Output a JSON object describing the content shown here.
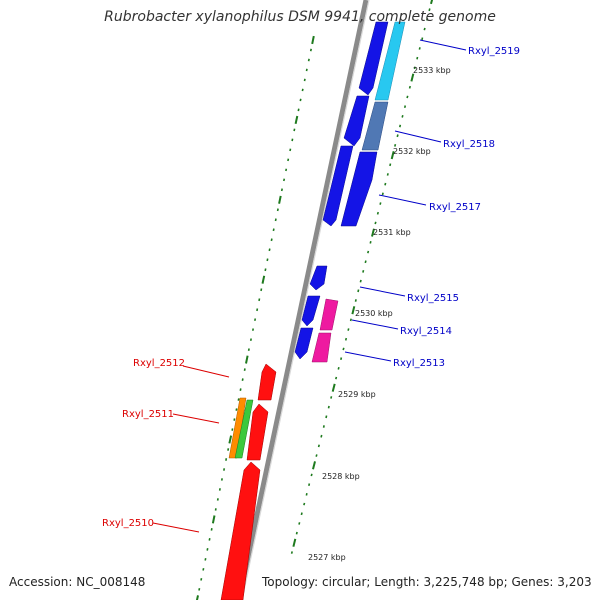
{
  "title": "Rubrobacter xylanophilus DSM 9941, complete genome",
  "footer": {
    "accession": "Accession: NC_008148",
    "topology": "Topology: circular; Length: 3,225,748 bp; Genes: 3,203"
  },
  "colors": {
    "backbone": "#888888",
    "tick": "#1e7a1e",
    "forward_label": "#0000c8",
    "reverse_label": "#dc0000",
    "blue": "#1414e6",
    "cyan": "#28c8f0",
    "steel": "#5078b4",
    "magenta": "#ee1aa0",
    "red": "#ff1010",
    "orange": "#ff8c00",
    "green": "#3cc83c"
  },
  "scale_labels": [
    {
      "kbp": 2533,
      "text": "2533 kbp"
    },
    {
      "kbp": 2532,
      "text": "2532 kbp"
    },
    {
      "kbp": 2531,
      "text": "2531 kbp"
    },
    {
      "kbp": 2530,
      "text": "2530 kbp"
    },
    {
      "kbp": 2529,
      "text": "2529 kbp"
    },
    {
      "kbp": 2528,
      "text": "2528 kbp"
    },
    {
      "kbp": 2527,
      "text": "2527 kbp"
    }
  ],
  "genes": [
    {
      "id": "rxyl-2519",
      "label": "Rxyl_2519",
      "strand": "forward"
    },
    {
      "id": "rxyl-2518",
      "label": "Rxyl_2518",
      "strand": "forward"
    },
    {
      "id": "rxyl-2517",
      "label": "Rxyl_2517",
      "strand": "forward"
    },
    {
      "id": "rxyl-2515",
      "label": "Rxyl_2515",
      "strand": "forward"
    },
    {
      "id": "rxyl-2514",
      "label": "Rxyl_2514",
      "strand": "forward"
    },
    {
      "id": "rxyl-2513",
      "label": "Rxyl_2513",
      "strand": "forward"
    },
    {
      "id": "rxyl-2512",
      "label": "Rxyl_2512",
      "strand": "reverse"
    },
    {
      "id": "rxyl-2511",
      "label": "Rxyl_2511",
      "strand": "reverse"
    },
    {
      "id": "rxyl-2510",
      "label": "Rxyl_2510",
      "strand": "reverse"
    }
  ]
}
